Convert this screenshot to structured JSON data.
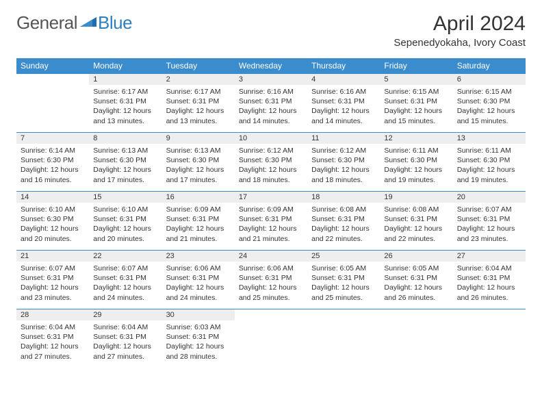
{
  "logo": {
    "general": "General",
    "blue": "Blue"
  },
  "title": "April 2024",
  "location": "Sepenedyokaha, Ivory Coast",
  "colors": {
    "header_bg": "#3b8ccc",
    "header_text": "#ffffff",
    "daynum_bg": "#eeeeee",
    "border": "#3b8ccc",
    "text": "#333333",
    "logo_gray": "#555555",
    "logo_blue": "#2f7fc0",
    "background": "#ffffff"
  },
  "day_headers": [
    "Sunday",
    "Monday",
    "Tuesday",
    "Wednesday",
    "Thursday",
    "Friday",
    "Saturday"
  ],
  "weeks": [
    [
      {
        "num": "",
        "sunrise": "",
        "sunset": "",
        "daylight": ""
      },
      {
        "num": "1",
        "sunrise": "Sunrise: 6:17 AM",
        "sunset": "Sunset: 6:31 PM",
        "daylight": "Daylight: 12 hours and 13 minutes."
      },
      {
        "num": "2",
        "sunrise": "Sunrise: 6:17 AM",
        "sunset": "Sunset: 6:31 PM",
        "daylight": "Daylight: 12 hours and 13 minutes."
      },
      {
        "num": "3",
        "sunrise": "Sunrise: 6:16 AM",
        "sunset": "Sunset: 6:31 PM",
        "daylight": "Daylight: 12 hours and 14 minutes."
      },
      {
        "num": "4",
        "sunrise": "Sunrise: 6:16 AM",
        "sunset": "Sunset: 6:31 PM",
        "daylight": "Daylight: 12 hours and 14 minutes."
      },
      {
        "num": "5",
        "sunrise": "Sunrise: 6:15 AM",
        "sunset": "Sunset: 6:31 PM",
        "daylight": "Daylight: 12 hours and 15 minutes."
      },
      {
        "num": "6",
        "sunrise": "Sunrise: 6:15 AM",
        "sunset": "Sunset: 6:30 PM",
        "daylight": "Daylight: 12 hours and 15 minutes."
      }
    ],
    [
      {
        "num": "7",
        "sunrise": "Sunrise: 6:14 AM",
        "sunset": "Sunset: 6:30 PM",
        "daylight": "Daylight: 12 hours and 16 minutes."
      },
      {
        "num": "8",
        "sunrise": "Sunrise: 6:13 AM",
        "sunset": "Sunset: 6:30 PM",
        "daylight": "Daylight: 12 hours and 17 minutes."
      },
      {
        "num": "9",
        "sunrise": "Sunrise: 6:13 AM",
        "sunset": "Sunset: 6:30 PM",
        "daylight": "Daylight: 12 hours and 17 minutes."
      },
      {
        "num": "10",
        "sunrise": "Sunrise: 6:12 AM",
        "sunset": "Sunset: 6:30 PM",
        "daylight": "Daylight: 12 hours and 18 minutes."
      },
      {
        "num": "11",
        "sunrise": "Sunrise: 6:12 AM",
        "sunset": "Sunset: 6:30 PM",
        "daylight": "Daylight: 12 hours and 18 minutes."
      },
      {
        "num": "12",
        "sunrise": "Sunrise: 6:11 AM",
        "sunset": "Sunset: 6:30 PM",
        "daylight": "Daylight: 12 hours and 19 minutes."
      },
      {
        "num": "13",
        "sunrise": "Sunrise: 6:11 AM",
        "sunset": "Sunset: 6:30 PM",
        "daylight": "Daylight: 12 hours and 19 minutes."
      }
    ],
    [
      {
        "num": "14",
        "sunrise": "Sunrise: 6:10 AM",
        "sunset": "Sunset: 6:30 PM",
        "daylight": "Daylight: 12 hours and 20 minutes."
      },
      {
        "num": "15",
        "sunrise": "Sunrise: 6:10 AM",
        "sunset": "Sunset: 6:31 PM",
        "daylight": "Daylight: 12 hours and 20 minutes."
      },
      {
        "num": "16",
        "sunrise": "Sunrise: 6:09 AM",
        "sunset": "Sunset: 6:31 PM",
        "daylight": "Daylight: 12 hours and 21 minutes."
      },
      {
        "num": "17",
        "sunrise": "Sunrise: 6:09 AM",
        "sunset": "Sunset: 6:31 PM",
        "daylight": "Daylight: 12 hours and 21 minutes."
      },
      {
        "num": "18",
        "sunrise": "Sunrise: 6:08 AM",
        "sunset": "Sunset: 6:31 PM",
        "daylight": "Daylight: 12 hours and 22 minutes."
      },
      {
        "num": "19",
        "sunrise": "Sunrise: 6:08 AM",
        "sunset": "Sunset: 6:31 PM",
        "daylight": "Daylight: 12 hours and 22 minutes."
      },
      {
        "num": "20",
        "sunrise": "Sunrise: 6:07 AM",
        "sunset": "Sunset: 6:31 PM",
        "daylight": "Daylight: 12 hours and 23 minutes."
      }
    ],
    [
      {
        "num": "21",
        "sunrise": "Sunrise: 6:07 AM",
        "sunset": "Sunset: 6:31 PM",
        "daylight": "Daylight: 12 hours and 23 minutes."
      },
      {
        "num": "22",
        "sunrise": "Sunrise: 6:07 AM",
        "sunset": "Sunset: 6:31 PM",
        "daylight": "Daylight: 12 hours and 24 minutes."
      },
      {
        "num": "23",
        "sunrise": "Sunrise: 6:06 AM",
        "sunset": "Sunset: 6:31 PM",
        "daylight": "Daylight: 12 hours and 24 minutes."
      },
      {
        "num": "24",
        "sunrise": "Sunrise: 6:06 AM",
        "sunset": "Sunset: 6:31 PM",
        "daylight": "Daylight: 12 hours and 25 minutes."
      },
      {
        "num": "25",
        "sunrise": "Sunrise: 6:05 AM",
        "sunset": "Sunset: 6:31 PM",
        "daylight": "Daylight: 12 hours and 25 minutes."
      },
      {
        "num": "26",
        "sunrise": "Sunrise: 6:05 AM",
        "sunset": "Sunset: 6:31 PM",
        "daylight": "Daylight: 12 hours and 26 minutes."
      },
      {
        "num": "27",
        "sunrise": "Sunrise: 6:04 AM",
        "sunset": "Sunset: 6:31 PM",
        "daylight": "Daylight: 12 hours and 26 minutes."
      }
    ],
    [
      {
        "num": "28",
        "sunrise": "Sunrise: 6:04 AM",
        "sunset": "Sunset: 6:31 PM",
        "daylight": "Daylight: 12 hours and 27 minutes."
      },
      {
        "num": "29",
        "sunrise": "Sunrise: 6:04 AM",
        "sunset": "Sunset: 6:31 PM",
        "daylight": "Daylight: 12 hours and 27 minutes."
      },
      {
        "num": "30",
        "sunrise": "Sunrise: 6:03 AM",
        "sunset": "Sunset: 6:31 PM",
        "daylight": "Daylight: 12 hours and 28 minutes."
      },
      {
        "num": "",
        "sunrise": "",
        "sunset": "",
        "daylight": ""
      },
      {
        "num": "",
        "sunrise": "",
        "sunset": "",
        "daylight": ""
      },
      {
        "num": "",
        "sunrise": "",
        "sunset": "",
        "daylight": ""
      },
      {
        "num": "",
        "sunrise": "",
        "sunset": "",
        "daylight": ""
      }
    ]
  ]
}
